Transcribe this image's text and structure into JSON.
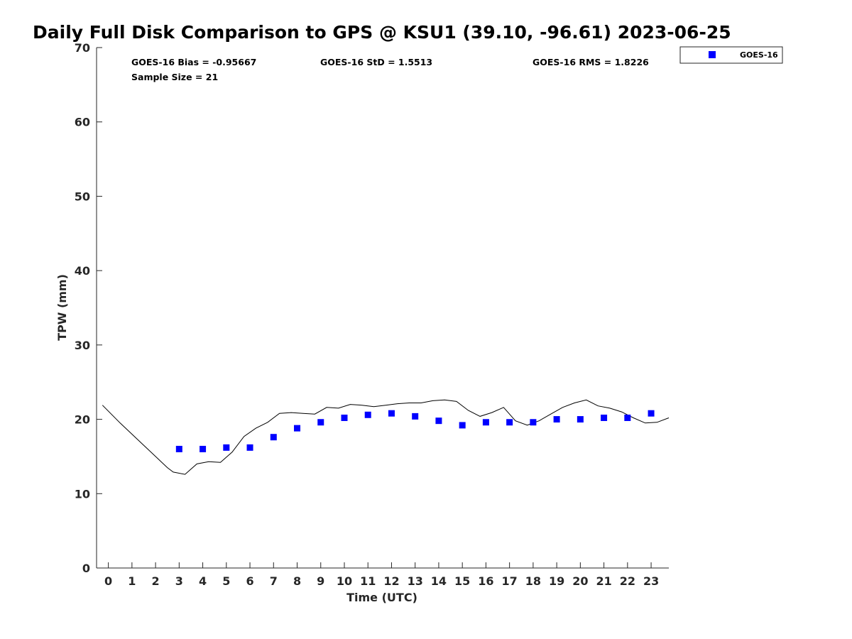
{
  "colors": {
    "points": "#0000ff",
    "line": "#000000",
    "axis": "#262626"
  },
  "chart_data": {
    "type": "scatter",
    "title": "Daily Full Disk Comparison to GPS @ KSU1 (39.10, -96.61) 2023-06-25",
    "xlabel": "Time (UTC)",
    "ylabel": "TPW (mm)",
    "xlim": [
      -0.5,
      23.75
    ],
    "ylim": [
      0,
      70
    ],
    "xticks": [
      0,
      1,
      2,
      3,
      4,
      5,
      6,
      7,
      8,
      9,
      10,
      11,
      12,
      13,
      14,
      15,
      16,
      17,
      18,
      19,
      20,
      21,
      22,
      23
    ],
    "yticks": [
      0,
      10,
      20,
      30,
      40,
      50,
      60,
      70
    ],
    "grid": false,
    "legend_position": "top-right, outside plot",
    "stats": {
      "bias": "GOES-16 Bias = -0.95667",
      "std": "GOES-16 StD = 1.5513",
      "rms": "GOES-16 RMS = 1.8226",
      "sample": "Sample Size = 21"
    },
    "series": [
      {
        "name": "GOES-16",
        "kind": "scatter",
        "marker": "square",
        "x": [
          3,
          4,
          5,
          6,
          7,
          8,
          9,
          10,
          11,
          12,
          13,
          14,
          15,
          16,
          17,
          18,
          19,
          20,
          21,
          22,
          23
        ],
        "y": [
          16.0,
          16.0,
          16.2,
          16.2,
          17.6,
          18.8,
          19.6,
          20.2,
          20.6,
          20.8,
          20.4,
          19.8,
          19.2,
          19.6,
          19.6,
          19.6,
          20.0,
          20.0,
          20.2,
          20.2,
          20.8
        ]
      },
      {
        "kind": "line",
        "x": [
          -0.25,
          0.5,
          1.5,
          2.5,
          2.75,
          3.25,
          3.75,
          4.25,
          4.75,
          5.25,
          5.75,
          6.25,
          6.75,
          7.25,
          7.75,
          8.25,
          8.75,
          9.25,
          9.75,
          10.25,
          10.75,
          11.25,
          11.75,
          12.25,
          12.75,
          13.25,
          13.75,
          14.25,
          14.75,
          15.25,
          15.75,
          16.25,
          16.75,
          17.25,
          17.75,
          18.25,
          18.75,
          19.25,
          19.75,
          20.25,
          20.75,
          21.25,
          21.75,
          22.25,
          22.75,
          23.25,
          23.75
        ],
        "y": [
          21.9,
          19.5,
          16.5,
          13.5,
          12.9,
          12.6,
          14.0,
          14.3,
          14.2,
          15.6,
          17.7,
          18.8,
          19.6,
          20.8,
          20.9,
          20.8,
          20.7,
          21.6,
          21.5,
          22.0,
          21.9,
          21.7,
          21.9,
          22.1,
          22.2,
          22.2,
          22.5,
          22.6,
          22.4,
          21.2,
          20.4,
          20.9,
          21.6,
          19.8,
          19.2,
          19.8,
          20.7,
          21.6,
          22.2,
          22.6,
          21.8,
          21.5,
          21.0,
          20.2,
          19.5,
          19.6,
          20.2
        ]
      }
    ]
  }
}
